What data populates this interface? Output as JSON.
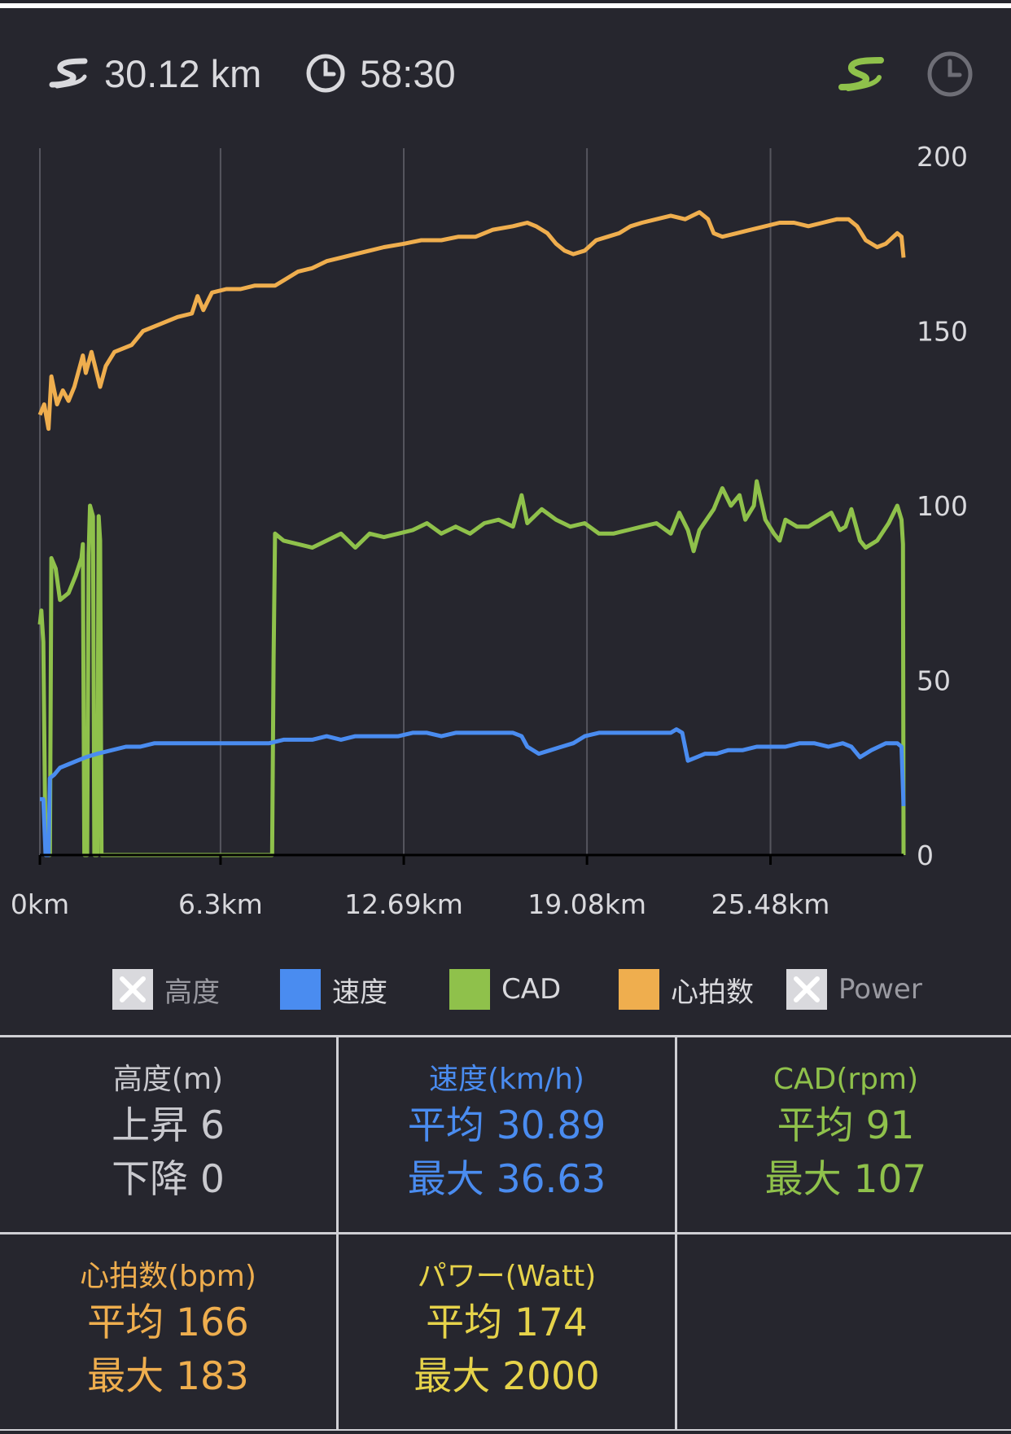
{
  "header": {
    "distance": "30.12 km",
    "time": "58:30",
    "route_icon": "route-icon",
    "clock_icon": "clock-icon"
  },
  "colors": {
    "background": "#26262e",
    "speed": "#4a8cf0",
    "cadence": "#8fc14b",
    "heart_rate": "#efae4e",
    "power": "#e6d34a",
    "text": "#d9d9dd",
    "grid": "#55555e"
  },
  "chart_data": {
    "type": "line",
    "x_tick_labels": [
      "0km",
      "6.3km",
      "12.69km",
      "19.08km",
      "25.48km"
    ],
    "x_ticks": [
      0,
      6.3,
      12.69,
      19.08,
      25.48
    ],
    "xlim": [
      0,
      30.12
    ],
    "y_tick_labels": [
      "200",
      "150",
      "100",
      "50",
      "0"
    ],
    "y_ticks": [
      200,
      150,
      100,
      50,
      0
    ],
    "ylim": [
      0,
      200
    ],
    "grid": "vertical",
    "legend_position": "bottom",
    "series": [
      {
        "name": "心拍数",
        "color": "#efae4e",
        "points": [
          [
            0,
            126
          ],
          [
            0.15,
            129
          ],
          [
            0.3,
            122
          ],
          [
            0.4,
            137
          ],
          [
            0.6,
            129
          ],
          [
            0.8,
            133
          ],
          [
            1,
            130
          ],
          [
            1.2,
            134
          ],
          [
            1.5,
            143
          ],
          [
            1.6,
            138
          ],
          [
            1.8,
            144
          ],
          [
            2.1,
            134
          ],
          [
            2.3,
            140
          ],
          [
            2.6,
            144
          ],
          [
            3.2,
            146
          ],
          [
            3.6,
            150
          ],
          [
            4.2,
            152
          ],
          [
            4.8,
            154
          ],
          [
            5.3,
            155
          ],
          [
            5.5,
            160
          ],
          [
            5.7,
            156
          ],
          [
            6,
            161
          ],
          [
            6.5,
            162
          ],
          [
            7,
            162
          ],
          [
            7.5,
            163
          ],
          [
            8.2,
            163
          ],
          [
            8.6,
            165
          ],
          [
            9,
            167
          ],
          [
            9.5,
            168
          ],
          [
            10,
            170
          ],
          [
            10.5,
            171
          ],
          [
            11,
            172
          ],
          [
            11.5,
            173
          ],
          [
            12,
            174
          ],
          [
            12.7,
            175
          ],
          [
            13.3,
            176
          ],
          [
            14,
            176
          ],
          [
            14.6,
            177
          ],
          [
            15.2,
            177
          ],
          [
            15.8,
            179
          ],
          [
            16.5,
            180
          ],
          [
            17,
            181
          ],
          [
            17.3,
            180
          ],
          [
            17.7,
            178
          ],
          [
            18,
            175
          ],
          [
            18.3,
            173
          ],
          [
            18.6,
            172
          ],
          [
            19,
            173
          ],
          [
            19.4,
            176
          ],
          [
            19.8,
            177
          ],
          [
            20.2,
            178
          ],
          [
            20.6,
            180
          ],
          [
            21,
            181
          ],
          [
            21.5,
            182
          ],
          [
            22,
            183
          ],
          [
            22.5,
            182
          ],
          [
            23,
            184
          ],
          [
            23.3,
            182
          ],
          [
            23.5,
            178
          ],
          [
            23.8,
            177
          ],
          [
            24.3,
            178
          ],
          [
            24.8,
            179
          ],
          [
            25.3,
            180
          ],
          [
            25.8,
            181
          ],
          [
            26.3,
            181
          ],
          [
            26.8,
            180
          ],
          [
            27.3,
            181
          ],
          [
            27.8,
            182
          ],
          [
            28.2,
            182
          ],
          [
            28.5,
            180
          ],
          [
            28.8,
            176
          ],
          [
            29.2,
            174
          ],
          [
            29.5,
            175
          ],
          [
            29.9,
            178
          ],
          [
            30.05,
            177
          ],
          [
            30.12,
            171
          ]
        ]
      },
      {
        "name": "CAD",
        "color": "#8fc14b",
        "points": [
          [
            0,
            66
          ],
          [
            0.05,
            70
          ],
          [
            0.12,
            61
          ],
          [
            0.2,
            0
          ],
          [
            0.35,
            0
          ],
          [
            0.4,
            85
          ],
          [
            0.55,
            82
          ],
          [
            0.7,
            73
          ],
          [
            1,
            75
          ],
          [
            1.25,
            80
          ],
          [
            1.45,
            85
          ],
          [
            1.5,
            89
          ],
          [
            1.55,
            0
          ],
          [
            1.65,
            0
          ],
          [
            1.7,
            86
          ],
          [
            1.75,
            100
          ],
          [
            1.85,
            97
          ],
          [
            1.9,
            0
          ],
          [
            2,
            0
          ],
          [
            2.05,
            97
          ],
          [
            2.1,
            90
          ],
          [
            2.15,
            0
          ],
          [
            8.1,
            0
          ],
          [
            8.15,
            56
          ],
          [
            8.2,
            92
          ],
          [
            8.5,
            90
          ],
          [
            9,
            89
          ],
          [
            9.5,
            88
          ],
          [
            10,
            90
          ],
          [
            10.5,
            92
          ],
          [
            11,
            88
          ],
          [
            11.5,
            92
          ],
          [
            12,
            91
          ],
          [
            12.5,
            92
          ],
          [
            13,
            93
          ],
          [
            13.5,
            95
          ],
          [
            14,
            92
          ],
          [
            14.5,
            94
          ],
          [
            15,
            92
          ],
          [
            15.5,
            95
          ],
          [
            16,
            96
          ],
          [
            16.5,
            94
          ],
          [
            16.8,
            103
          ],
          [
            17,
            95
          ],
          [
            17.5,
            99
          ],
          [
            18,
            96
          ],
          [
            18.5,
            94
          ],
          [
            19,
            95
          ],
          [
            19.5,
            92
          ],
          [
            20,
            92
          ],
          [
            20.5,
            93
          ],
          [
            21,
            94
          ],
          [
            21.5,
            95
          ],
          [
            22,
            92
          ],
          [
            22.3,
            98
          ],
          [
            22.6,
            93
          ],
          [
            22.8,
            87
          ],
          [
            23,
            93
          ],
          [
            23.5,
            99
          ],
          [
            23.8,
            105
          ],
          [
            24.1,
            100
          ],
          [
            24.4,
            103
          ],
          [
            24.6,
            96
          ],
          [
            24.9,
            100
          ],
          [
            25,
            107
          ],
          [
            25.3,
            96
          ],
          [
            25.6,
            92
          ],
          [
            25.8,
            90
          ],
          [
            26,
            96
          ],
          [
            26.4,
            94
          ],
          [
            26.8,
            94
          ],
          [
            27.2,
            96
          ],
          [
            27.6,
            98
          ],
          [
            27.9,
            93
          ],
          [
            28.1,
            94
          ],
          [
            28.3,
            99
          ],
          [
            28.6,
            90
          ],
          [
            28.8,
            88
          ],
          [
            29.2,
            90
          ],
          [
            29.6,
            95
          ],
          [
            29.9,
            100
          ],
          [
            30.05,
            96
          ],
          [
            30.1,
            89
          ],
          [
            30.12,
            0
          ]
        ]
      },
      {
        "name": "速度",
        "color": "#4a8cf0",
        "points": [
          [
            0,
            16
          ],
          [
            0.12,
            16
          ],
          [
            0.2,
            0
          ],
          [
            0.3,
            0
          ],
          [
            0.35,
            22
          ],
          [
            0.5,
            23
          ],
          [
            0.7,
            25
          ],
          [
            1,
            26
          ],
          [
            1.3,
            27
          ],
          [
            1.6,
            28
          ],
          [
            2,
            29
          ],
          [
            2.5,
            30
          ],
          [
            3,
            31
          ],
          [
            3.5,
            31
          ],
          [
            4,
            32
          ],
          [
            4.5,
            32
          ],
          [
            5,
            32
          ],
          [
            5.5,
            32
          ],
          [
            6,
            32
          ],
          [
            6.5,
            32
          ],
          [
            7,
            32
          ],
          [
            7.5,
            32
          ],
          [
            8,
            32
          ],
          [
            8.5,
            33
          ],
          [
            9,
            33
          ],
          [
            9.5,
            33
          ],
          [
            10,
            34
          ],
          [
            10.5,
            33
          ],
          [
            11,
            34
          ],
          [
            11.5,
            34
          ],
          [
            12,
            34
          ],
          [
            12.5,
            34
          ],
          [
            13,
            35
          ],
          [
            13.5,
            35
          ],
          [
            14,
            34
          ],
          [
            14.5,
            35
          ],
          [
            15,
            35
          ],
          [
            15.5,
            35
          ],
          [
            16,
            35
          ],
          [
            16.5,
            35
          ],
          [
            16.8,
            34
          ],
          [
            17,
            31
          ],
          [
            17.4,
            29
          ],
          [
            17.8,
            30
          ],
          [
            18.2,
            31
          ],
          [
            18.6,
            32
          ],
          [
            19,
            34
          ],
          [
            19.5,
            35
          ],
          [
            20,
            35
          ],
          [
            20.5,
            35
          ],
          [
            21,
            35
          ],
          [
            21.5,
            35
          ],
          [
            22,
            35
          ],
          [
            22.2,
            36
          ],
          [
            22.4,
            35
          ],
          [
            22.6,
            27
          ],
          [
            22.9,
            28
          ],
          [
            23.2,
            29
          ],
          [
            23.6,
            29
          ],
          [
            24,
            30
          ],
          [
            24.5,
            30
          ],
          [
            25,
            31
          ],
          [
            25.5,
            31
          ],
          [
            26,
            31
          ],
          [
            26.5,
            32
          ],
          [
            27,
            32
          ],
          [
            27.5,
            31
          ],
          [
            28,
            32
          ],
          [
            28.3,
            31
          ],
          [
            28.6,
            28
          ],
          [
            29,
            30
          ],
          [
            29.5,
            32
          ],
          [
            29.9,
            32
          ],
          [
            30.05,
            31
          ],
          [
            30.12,
            14
          ]
        ]
      }
    ]
  },
  "legend": [
    {
      "label": "高度",
      "color": "#d9d9dd",
      "disabled": true
    },
    {
      "label": "速度",
      "color": "#4a8cf0",
      "disabled": false
    },
    {
      "label": "CAD",
      "color": "#8fc14b",
      "disabled": false
    },
    {
      "label": "心拍数",
      "color": "#efae4e",
      "disabled": false
    },
    {
      "label": "Power",
      "color": "#d9d9dd",
      "disabled": true
    }
  ],
  "stats": {
    "elevation": {
      "title": "高度(m)",
      "line1": "上昇 6",
      "line2": "下降 0",
      "color": "#c9c9ce"
    },
    "speed": {
      "title": "速度(km/h)",
      "line1": "平均 30.89",
      "line2": "最大 36.63",
      "color": "#4a8cf0"
    },
    "cadence": {
      "title": "CAD(rpm)",
      "line1": "平均 91",
      "line2": "最大 107",
      "color": "#8fc14b"
    },
    "heart_rate": {
      "title": "心拍数(bpm)",
      "line1": "平均 166",
      "line2": "最大 183",
      "color": "#efae4e"
    },
    "power": {
      "title": "パワー(Watt)",
      "line1": "平均 174",
      "line2": "最大 2000",
      "color": "#e6d34a"
    }
  }
}
